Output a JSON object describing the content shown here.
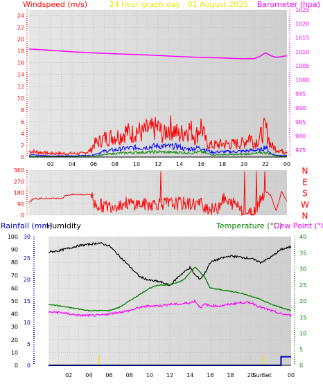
{
  "header": {
    "left": "Windspeed (m/s)",
    "center": "24 hour graph day : 01 August 2025",
    "right": "Barometer (hpa)"
  },
  "bottom_header": {
    "rain": "Rainfall (mm)",
    "hum": "Humidity",
    "temp": "Temperature (°C)",
    "dew": "Dew Point (°C)"
  },
  "colors": {
    "wind": "#ff0000",
    "baro": "#ff00ff",
    "gust": "#0000ff",
    "green": "#008000",
    "humidity": "#000000",
    "rain": "#0000cc",
    "plot_bg": "#d9d9d9",
    "sun": "#e8e800"
  },
  "x_ticks": [
    "02",
    "04",
    "06",
    "08",
    "10",
    "12",
    "14",
    "16",
    "18",
    "20",
    "22",
    "00"
  ],
  "bottom_x_ticks": [
    "02",
    "04",
    "06",
    "08",
    "10",
    "12",
    "14",
    "16",
    "18",
    "20",
    "00"
  ],
  "sun_labels": [
    "Sun",
    "Set"
  ],
  "chart_data": [
    {
      "type": "line",
      "panel": "wind-barometer",
      "left_axis": {
        "label": "Windspeed (m/s)",
        "ylim": [
          0,
          25
        ],
        "ticks": [
          0,
          2,
          4,
          6,
          8,
          10,
          12,
          14,
          16,
          18,
          20,
          22,
          24
        ]
      },
      "right_axis": {
        "label": "Barometer (hpa)",
        "ylim": [
          972.5,
          1025
        ],
        "ticks": [
          975,
          980,
          985,
          990,
          995,
          1000,
          1005,
          1010,
          1015,
          1020,
          1025
        ]
      },
      "xlim": [
        0,
        24
      ],
      "series": [
        {
          "name": "Barometer (hpa)",
          "axis": "right",
          "x": [
            0,
            2,
            4,
            6,
            8,
            10,
            12,
            14,
            16,
            18,
            20,
            21,
            21.5,
            22,
            22.5,
            23,
            24
          ],
          "values": [
            1011,
            1010.5,
            1010,
            1009.6,
            1009.3,
            1009,
            1008.7,
            1008.3,
            1008,
            1007.8,
            1007.5,
            1007.6,
            1008.4,
            1009.7,
            1008.6,
            1008,
            1008.6
          ]
        }
      ],
      "envelopes": [
        {
          "role": "gust",
          "color": "red",
          "x": [
            0,
            1,
            2,
            3,
            4,
            5,
            5.8,
            6,
            6.5,
            7,
            7.5,
            8,
            8.5,
            9,
            9.5,
            10,
            10.5,
            11,
            11.5,
            12,
            12.5,
            13,
            13.5,
            14,
            14.5,
            15,
            15.5,
            16,
            16.5,
            17,
            18,
            19,
            20,
            20.5,
            21,
            21.5,
            22,
            22.5,
            23,
            23.5,
            24
          ],
          "values": [
            1,
            0.8,
            0.6,
            0.6,
            0.6,
            0.6,
            1.2,
            2.2,
            2.6,
            3.2,
            3.4,
            3.6,
            3.6,
            4.4,
            3.8,
            4.6,
            4,
            4.6,
            4.6,
            5,
            3.6,
            5.2,
            4.6,
            3.6,
            4.6,
            4.8,
            3.4,
            5.4,
            2.4,
            2,
            2.2,
            2.2,
            2.4,
            3.6,
            2.4,
            3.4,
            5,
            2,
            1.4,
            1,
            1
          ]
        },
        {
          "role": "average",
          "color": "blue",
          "x": [
            0,
            2,
            4,
            5.8,
            6.5,
            7,
            8,
            9,
            10,
            11,
            12,
            13,
            14,
            14.5,
            15,
            16,
            17,
            18,
            19,
            20,
            21,
            21.5,
            22,
            22.5,
            23,
            24
          ],
          "values": [
            0.4,
            0.2,
            0.2,
            0.3,
            0.7,
            1,
            1.2,
            1.5,
            1.6,
            1.7,
            1.9,
            1.8,
            1.8,
            1.3,
            1.4,
            1.6,
            0.8,
            0.9,
            0.9,
            1,
            1.2,
            1.1,
            1.8,
            0.6,
            0.3,
            0.3
          ]
        },
        {
          "role": "minimum",
          "color": "green",
          "x": [
            0,
            2,
            4,
            6,
            7,
            8,
            9,
            10,
            11,
            12,
            13,
            14,
            15,
            16,
            17,
            18,
            19,
            20,
            21,
            22,
            23,
            24
          ],
          "values": [
            0.1,
            0.1,
            0.1,
            0.2,
            0.4,
            0.6,
            0.7,
            0.8,
            0.8,
            0.9,
            0.8,
            0.8,
            0.7,
            0.9,
            0.4,
            0.4,
            0.4,
            0.5,
            0.6,
            0.8,
            0.2,
            0.1
          ]
        }
      ]
    },
    {
      "type": "line",
      "panel": "wind-direction",
      "ylim": [
        0,
        360
      ],
      "ticks": [
        0,
        90,
        180,
        270,
        360
      ],
      "right_labels": [
        "N",
        "W",
        "S",
        "E",
        "N"
      ],
      "xlim": [
        0,
        24
      ],
      "series": [
        {
          "name": "Wind direction",
          "x": [
            0,
            0.5,
            0.8,
            1,
            2,
            3,
            3.5,
            4,
            5,
            5.8,
            6,
            7,
            8,
            9,
            10,
            11,
            12,
            13,
            14,
            15,
            16,
            17,
            17.5,
            18,
            18.5,
            19,
            19.5,
            20,
            20.5,
            21,
            21.5,
            22,
            22.5,
            23,
            23.5,
            24
          ],
          "values": [
            100,
            140,
            125,
            135,
            135,
            135,
            160,
            165,
            165,
            165,
            95,
            70,
            80,
            95,
            90,
            85,
            95,
            90,
            95,
            90,
            90,
            45,
            50,
            140,
            95,
            95,
            80,
            40,
            10,
            30,
            130,
            190,
            160,
            30,
            190,
            110
          ]
        }
      ]
    },
    {
      "type": "line",
      "panel": "temperature-humidity-rain",
      "left_axis": {
        "label": "Humidity",
        "ylim": [
          0,
          100
        ],
        "ticks": [
          0,
          10,
          20,
          30,
          40,
          50,
          60,
          70,
          80,
          90,
          100
        ]
      },
      "rain_axis": {
        "label": "Rainfall (mm)",
        "ylim": [
          0,
          30
        ],
        "ticks": [
          0,
          5,
          10,
          15,
          20,
          25,
          30
        ]
      },
      "right_axis": {
        "label": "Temperature (°C)",
        "ylim": [
          0,
          40
        ],
        "ticks": [
          0,
          5,
          10,
          15,
          20,
          25,
          30,
          35,
          40
        ]
      },
      "xlim": [
        0,
        24
      ],
      "series": [
        {
          "name": "Humidity",
          "axis": "left",
          "x": [
            0,
            1,
            2,
            3,
            4,
            5,
            6,
            7,
            8,
            9,
            10,
            11,
            12,
            13,
            14,
            14.5,
            15,
            15.5,
            16,
            17,
            18,
            19,
            20,
            21,
            22,
            23,
            24
          ],
          "values": [
            88,
            89,
            91,
            93,
            94,
            95,
            93,
            85,
            77,
            69,
            66,
            65,
            62,
            70,
            76,
            70,
            67,
            72,
            80,
            83,
            85,
            84,
            83,
            80,
            84,
            90,
            92
          ]
        },
        {
          "name": "Temperature (°C)",
          "axis": "right",
          "x": [
            0,
            1,
            2,
            3,
            4,
            5,
            6,
            7,
            8,
            9,
            10,
            11,
            12,
            13,
            13.5,
            14,
            14.5,
            15,
            15.5,
            16,
            17,
            18,
            19,
            20,
            21,
            22,
            23,
            24
          ],
          "values": [
            19,
            18.5,
            18,
            17.5,
            17,
            17,
            17,
            18,
            20,
            22,
            24,
            25,
            25,
            26,
            27,
            29,
            30.5,
            29,
            27,
            24,
            23.5,
            23,
            22.5,
            21.5,
            20.5,
            19,
            18,
            17
          ]
        },
        {
          "name": "Dew Point (°C)",
          "axis": "right",
          "x": [
            0,
            1,
            2,
            3,
            4,
            5,
            6,
            7,
            8,
            9,
            10,
            11,
            12,
            13,
            14,
            14.5,
            15,
            15.5,
            16,
            17,
            18,
            19,
            20,
            21,
            22,
            23,
            24
          ],
          "values": [
            16.5,
            16.5,
            16,
            15.5,
            15.5,
            15.5,
            16,
            16.5,
            17,
            18,
            18.5,
            18.5,
            19,
            19,
            19.5,
            20,
            18,
            19,
            18.5,
            18.5,
            19,
            19.5,
            19.5,
            18,
            17,
            16,
            15.5
          ]
        },
        {
          "name": "Rainfall (mm)",
          "axis": "rain",
          "x": [
            0,
            23,
            23,
            24
          ],
          "values": [
            0,
            0,
            2,
            2
          ]
        }
      ]
    }
  ]
}
